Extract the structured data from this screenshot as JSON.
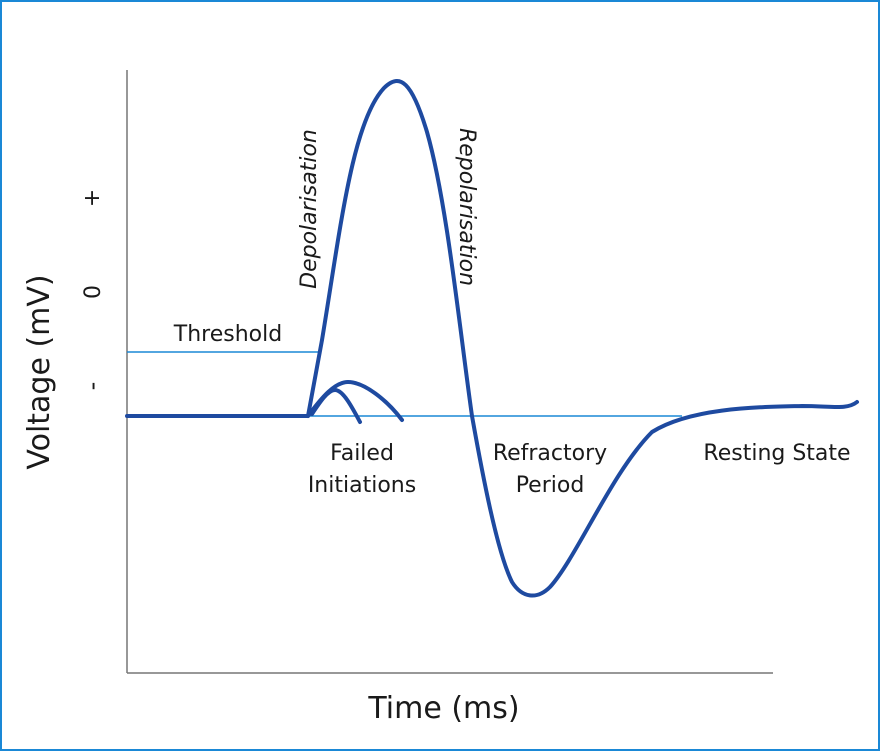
{
  "diagram": {
    "axis": {
      "ylabel": "Voltage (mV)",
      "xlabel": "Time (ms)",
      "y_marks": {
        "plus": "+",
        "zero": "0",
        "minus": "-"
      }
    },
    "annotations": {
      "threshold": "Threshold",
      "depolarisation": "Depolarisation",
      "repolarisation": "Repolarisation",
      "failed_line1": "Failed",
      "failed_line2": "Initiations",
      "refractory_line1": "Refractory",
      "refractory_line2": "Period",
      "resting": "Resting State"
    },
    "colors": {
      "curve": "#1e4aa0",
      "reference_lines": "#1a88d6",
      "axes": "#777777",
      "border": "#1a88d6"
    }
  }
}
